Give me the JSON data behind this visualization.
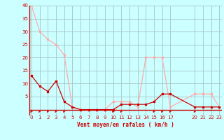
{
  "x_avg": [
    0,
    1,
    2,
    3,
    4,
    5,
    6,
    7,
    8,
    9,
    10,
    11,
    12,
    13,
    14,
    15,
    16,
    17,
    20,
    21,
    22,
    23
  ],
  "y_avg": [
    13,
    9,
    7,
    11,
    3,
    1,
    0,
    0,
    0,
    0,
    0,
    2,
    2,
    2,
    2,
    3,
    6,
    6,
    1,
    1,
    1,
    1
  ],
  "x_gust": [
    0,
    1,
    2,
    3,
    4,
    5,
    6,
    7,
    8,
    9,
    10,
    11,
    12,
    13,
    14,
    15,
    16,
    17,
    20,
    21,
    22,
    23
  ],
  "y_gust": [
    40,
    30,
    27,
    25,
    21,
    1,
    0,
    0,
    0,
    0,
    3,
    3,
    3,
    1,
    20,
    20,
    20,
    1,
    6,
    6,
    6,
    1
  ],
  "color_avg": "#cc0000",
  "color_gust": "#ffaaaa",
  "bg_color": "#ccffff",
  "grid_color": "#aacccc",
  "xlabel": "Vent moyen/en rafales ( km/h )",
  "ylim": [
    -2,
    40
  ],
  "xlim": [
    -0.3,
    23.3
  ],
  "yticks": [
    0,
    5,
    10,
    15,
    20,
    25,
    30,
    35,
    40
  ],
  "xticks": [
    0,
    1,
    2,
    3,
    4,
    5,
    6,
    7,
    8,
    9,
    10,
    11,
    12,
    13,
    14,
    15,
    16,
    17,
    20,
    21,
    22,
    23
  ],
  "arrows_avg": [
    0,
    1,
    2,
    3,
    4,
    10,
    11,
    15,
    16,
    17,
    20
  ],
  "arrows_gust": []
}
